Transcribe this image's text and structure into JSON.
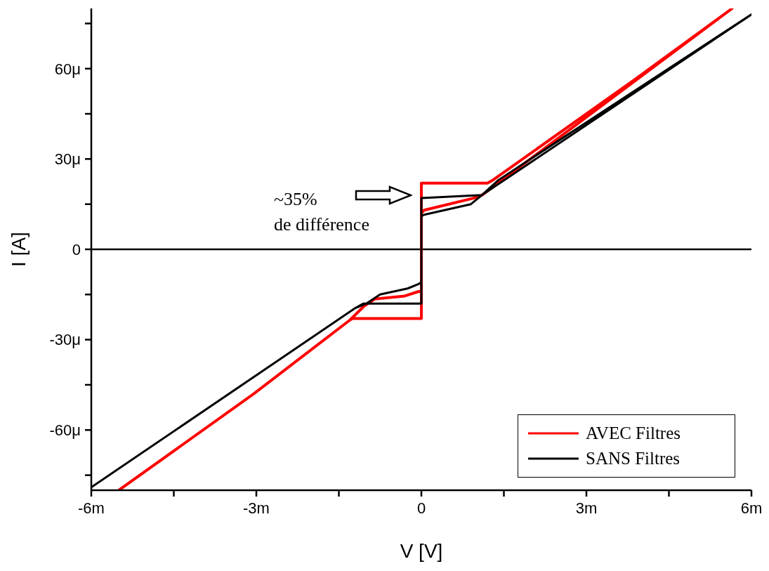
{
  "chart_data": {
    "type": "line",
    "xlabel": "V [V]",
    "ylabel": "I [A]",
    "xlim": [
      -6,
      6
    ],
    "xticks": [
      {
        "value": -6,
        "label": "-6m"
      },
      {
        "value": -4.5,
        "label": null
      },
      {
        "value": -3,
        "label": "-3m"
      },
      {
        "value": -1.5,
        "label": null
      },
      0,
      {
        "value": 1.5,
        "label": null
      },
      {
        "value": 3,
        "label": "3m"
      },
      {
        "value": 4.5,
        "label": null
      },
      {
        "value": 6,
        "label": "6m"
      }
    ],
    "ylim": [
      -80,
      80
    ],
    "yticks": [
      {
        "value": -75,
        "label": null
      },
      {
        "value": -60,
        "label": "-60μ"
      },
      {
        "value": -45,
        "label": null
      },
      {
        "value": -30,
        "label": "-30μ"
      },
      {
        "value": -15,
        "label": null
      },
      0,
      {
        "value": 15,
        "label": null
      },
      {
        "value": 30,
        "label": "30μ"
      },
      {
        "value": 45,
        "label": null
      },
      {
        "value": 60,
        "label": "60μ"
      },
      {
        "value": 75,
        "label": null
      }
    ],
    "series": [
      {
        "name": "AVEC Filtres",
        "color": "#ff0000",
        "x": [
          -5.5,
          -3.05,
          -1.3,
          -1.25,
          0,
          0,
          1.2,
          1.3,
          3.85,
          5.65,
          1.1,
          0.95,
          0.05,
          0,
          0,
          -0.05,
          -0.3,
          -0.85,
          -1.05,
          -1.3
        ],
        "values": [
          -80,
          -48,
          -23.5,
          -23,
          -23,
          22,
          22,
          23,
          56,
          80,
          18,
          17,
          13,
          12,
          -14,
          -14,
          -15.5,
          -16.5,
          -19,
          -23.5
        ]
      },
      {
        "name": "SANS Filtres",
        "color": "#000000",
        "x": [
          -6,
          -1.2,
          -1.05,
          0,
          0,
          1.1,
          1.4,
          6,
          1.1,
          0.9,
          0.05,
          0,
          0,
          -0.05,
          -0.25,
          -0.75,
          -1,
          -1.2
        ],
        "values": [
          -79,
          -19.5,
          -18,
          -18,
          17,
          18,
          23,
          78,
          18,
          15,
          11.5,
          11,
          -11,
          -11.5,
          -13,
          -15,
          -18,
          -19.5
        ]
      }
    ],
    "ref_lines": [
      {
        "axis": "y",
        "value": 0,
        "color": "#000000"
      }
    ],
    "annotations": [
      "~35%\nde différence"
    ],
    "legend": "bottom right",
    "grid": false,
    "marker": "none",
    "line_style": "solid"
  }
}
